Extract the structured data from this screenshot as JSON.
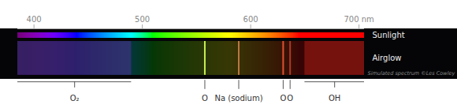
{
  "chart_data": {
    "type": "spectrum",
    "xlim": [
      385,
      705
    ],
    "xticks": [
      400,
      500,
      600,
      {
        "value": 700,
        "label": "700 nm"
      }
    ],
    "categories": [
      "Sunlight",
      "Airglow"
    ],
    "annotations": [
      "Simulated spectrum ©Les Cowley"
    ],
    "series": [
      {
        "name": "O₂",
        "type": "band",
        "x": [
          385,
          490
        ],
        "color": "#4a3290"
      },
      {
        "name": "O",
        "type": "line",
        "x": 557.7,
        "color": "#c8f050"
      },
      {
        "name": "Na (sodium)",
        "type": "line",
        "x": 589.0,
        "color": "#b87840"
      },
      {
        "name": "O",
        "type": "line",
        "x": 630.0,
        "color": "#e05030"
      },
      {
        "name": "O",
        "type": "line",
        "x": 636.4,
        "color": "#b03a28"
      },
      {
        "name": "OH",
        "type": "band",
        "x": [
          650,
          705
        ],
        "color": "#a01c14"
      }
    ]
  }
}
